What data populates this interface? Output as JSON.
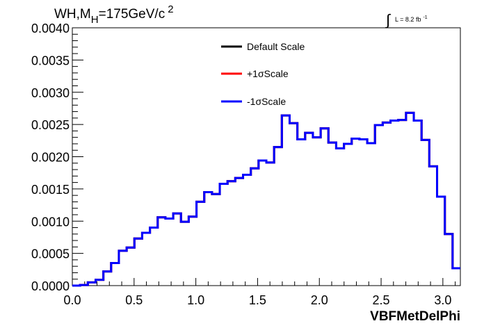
{
  "chart_data": {
    "type": "line",
    "title": "WH,M_H=175GeV/c^2",
    "title_parts": {
      "base": "WH,M",
      "sub": "H",
      "rest": "=175GeV/c",
      "sup": "2"
    },
    "lumi": {
      "integral": "∫",
      "label": "L = 8.2 fb",
      "sup": "-1"
    },
    "xlabel": "VBFMetDelPhi",
    "ylabel": "",
    "xlim": [
      0.0,
      3.1416
    ],
    "ylim": [
      0.0,
      0.004
    ],
    "x_ticks": [
      {
        "value": 0.0,
        "label": "0.0"
      },
      {
        "value": 0.5,
        "label": "0.5"
      },
      {
        "value": 1.0,
        "label": "1.0"
      },
      {
        "value": 1.5,
        "label": "1.5"
      },
      {
        "value": 2.0,
        "label": "2.0"
      },
      {
        "value": 2.5,
        "label": "2.5"
      },
      {
        "value": 3.0,
        "label": "3.0"
      }
    ],
    "y_ticks": [
      {
        "value": 0.0,
        "label": "0.0000"
      },
      {
        "value": 0.0005,
        "label": "0.0005"
      },
      {
        "value": 0.001,
        "label": "0.0010"
      },
      {
        "value": 0.0015,
        "label": "0.0015"
      },
      {
        "value": 0.002,
        "label": "0.0020"
      },
      {
        "value": 0.0025,
        "label": "0.0025"
      },
      {
        "value": 0.003,
        "label": "0.0030"
      },
      {
        "value": 0.0035,
        "label": "0.0035"
      },
      {
        "value": 0.004,
        "label": "0.0040"
      }
    ],
    "grid": false,
    "legend_position": "top-center",
    "bins": {
      "min": 0.0,
      "max": 3.1416,
      "count": 50
    },
    "series": [
      {
        "name": "Default Scale",
        "color": "#000000",
        "values": [
          0.0,
          1e-05,
          5e-05,
          9e-05,
          0.00022,
          0.00035,
          0.00054,
          0.00059,
          0.00073,
          0.00082,
          0.0009,
          0.00106,
          0.00104,
          0.00112,
          0.00099,
          0.00107,
          0.0013,
          0.00145,
          0.00142,
          0.00158,
          0.00162,
          0.00167,
          0.00172,
          0.00182,
          0.00194,
          0.00191,
          0.00215,
          0.00264,
          0.00252,
          0.00227,
          0.00237,
          0.0023,
          0.00244,
          0.00222,
          0.00213,
          0.0022,
          0.00228,
          0.00227,
          0.00221,
          0.00249,
          0.00253,
          0.00256,
          0.00257,
          0.00268,
          0.00256,
          0.00226,
          0.00185,
          0.00138,
          0.0008,
          0.00027
        ]
      },
      {
        "name": "+1σScale",
        "color": "#ff0000",
        "values": [
          0.0,
          1e-05,
          5e-05,
          9e-05,
          0.00022,
          0.00035,
          0.00054,
          0.00059,
          0.00073,
          0.00082,
          0.0009,
          0.00106,
          0.00104,
          0.00112,
          0.00099,
          0.00107,
          0.0013,
          0.00145,
          0.00142,
          0.00158,
          0.00162,
          0.00167,
          0.00172,
          0.00182,
          0.00194,
          0.00191,
          0.00215,
          0.00264,
          0.00252,
          0.00227,
          0.00237,
          0.0023,
          0.00244,
          0.00222,
          0.00213,
          0.0022,
          0.00228,
          0.00227,
          0.00221,
          0.00249,
          0.00253,
          0.00256,
          0.00257,
          0.00268,
          0.00256,
          0.00226,
          0.00185,
          0.00138,
          0.0008,
          0.00027
        ]
      },
      {
        "name": "-1σScale",
        "color": "#0000ff",
        "values": [
          0.0,
          1e-05,
          5e-05,
          9e-05,
          0.00022,
          0.00035,
          0.00054,
          0.00059,
          0.00073,
          0.00082,
          0.0009,
          0.00106,
          0.00104,
          0.00112,
          0.00099,
          0.00107,
          0.0013,
          0.00145,
          0.00142,
          0.00158,
          0.00162,
          0.00167,
          0.00172,
          0.00182,
          0.00194,
          0.00191,
          0.00215,
          0.00264,
          0.00252,
          0.00227,
          0.00237,
          0.0023,
          0.00244,
          0.00222,
          0.00213,
          0.0022,
          0.00228,
          0.00227,
          0.00221,
          0.00249,
          0.00253,
          0.00256,
          0.00257,
          0.00268,
          0.00256,
          0.00226,
          0.00185,
          0.00138,
          0.0008,
          0.00027
        ]
      }
    ]
  }
}
